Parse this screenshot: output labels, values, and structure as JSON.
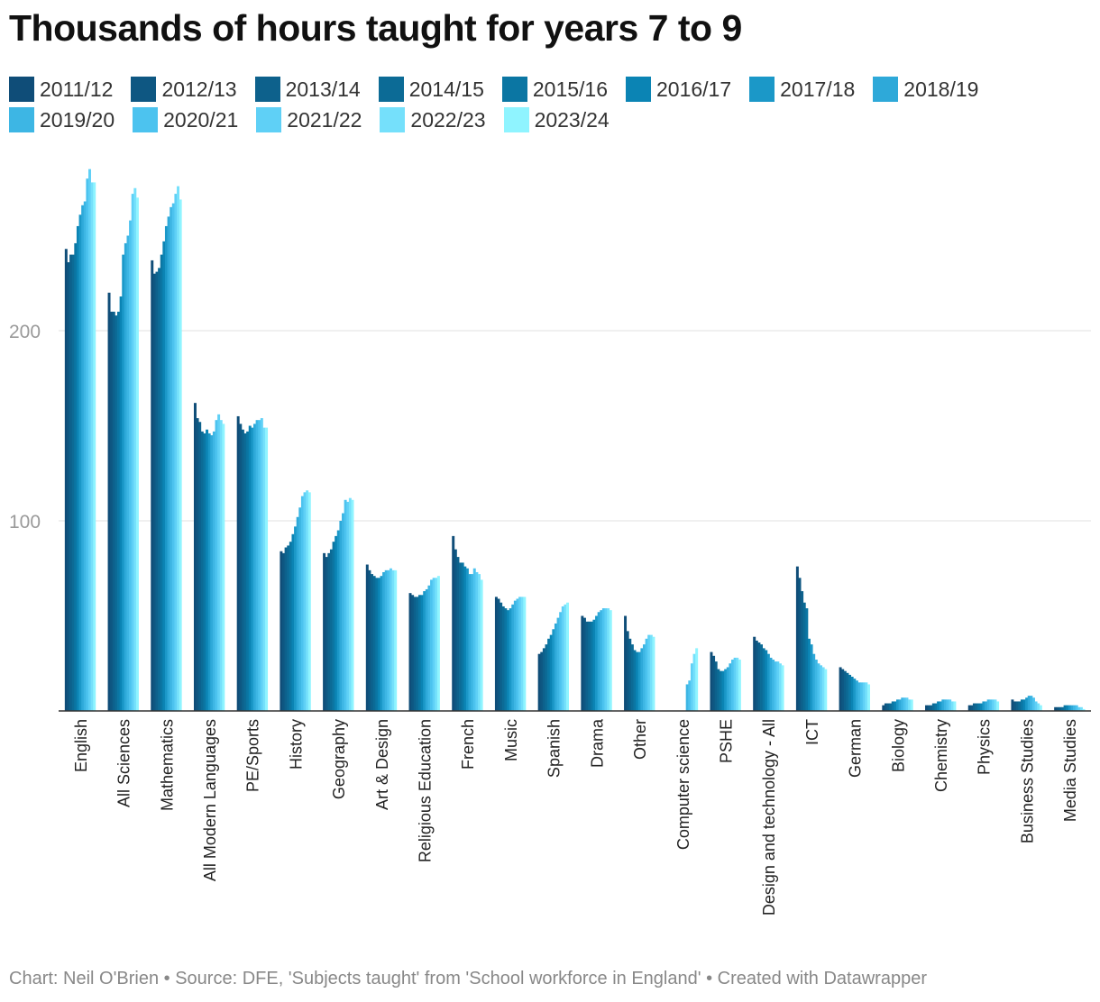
{
  "title": "Thousands of hours taught for years 7 to 9",
  "footer": "Chart: Neil O'Brien • Source: DFE, 'Subjects taught' from 'School workforce in England' • Created with Datawrapper",
  "chart_data": {
    "type": "bar",
    "title": "Thousands of hours taught for years 7 to 9",
    "xlabel": "",
    "ylabel": "",
    "ylim": [
      0,
      280
    ],
    "yticks": [
      100,
      200
    ],
    "grid": true,
    "legend_position": "top",
    "series": [
      {
        "name": "2011/12",
        "color": "#0f4d78",
        "values": [
          243,
          220,
          237,
          162,
          155,
          84,
          83,
          77,
          62,
          92,
          60,
          30,
          50,
          50,
          null,
          31,
          39,
          76,
          23,
          3,
          3,
          3,
          6,
          2
        ]
      },
      {
        "name": "2012/13",
        "color": "#0e5782",
        "values": [
          236,
          210,
          230,
          154,
          151,
          83,
          81,
          74,
          61,
          85,
          59,
          31,
          49,
          42,
          null,
          29,
          37,
          70,
          22,
          4,
          3,
          3,
          5,
          2
        ]
      },
      {
        "name": "2013/14",
        "color": "#0d618c",
        "values": [
          240,
          210,
          231,
          152,
          148,
          86,
          83,
          72,
          60,
          81,
          57,
          33,
          47,
          38,
          null,
          26,
          36,
          63,
          21,
          4,
          3,
          4,
          5,
          2
        ]
      },
      {
        "name": "2014/15",
        "color": "#0c6b96",
        "values": [
          240,
          208,
          233,
          147,
          146,
          87,
          85,
          71,
          60,
          78,
          55,
          35,
          47,
          35,
          null,
          22,
          35,
          57,
          20,
          4,
          4,
          4,
          5,
          2
        ]
      },
      {
        "name": "2015/16",
        "color": "#0b76a3",
        "values": [
          246,
          210,
          240,
          146,
          147,
          89,
          89,
          70,
          61,
          78,
          54,
          38,
          47,
          32,
          null,
          21,
          33,
          54,
          19,
          5,
          4,
          4,
          6,
          3
        ]
      },
      {
        "name": "2016/17",
        "color": "#0b84b4",
        "values": [
          255,
          218,
          247,
          148,
          150,
          93,
          92,
          70,
          61,
          76,
          53,
          40,
          48,
          31,
          null,
          21,
          32,
          38,
          18,
          5,
          5,
          4,
          6,
          3
        ]
      },
      {
        "name": "2017/18",
        "color": "#1b98c8",
        "values": [
          261,
          240,
          255,
          146,
          149,
          97,
          95,
          71,
          63,
          75,
          54,
          43,
          50,
          31,
          null,
          22,
          30,
          35,
          17,
          6,
          5,
          5,
          7,
          3
        ]
      },
      {
        "name": "2018/19",
        "color": "#2ea9d9",
        "values": [
          266,
          246,
          260,
          145,
          151,
          102,
          100,
          73,
          64,
          72,
          56,
          46,
          52,
          33,
          null,
          23,
          28,
          30,
          16,
          6,
          6,
          5,
          8,
          3
        ]
      },
      {
        "name": "2019/20",
        "color": "#3db6e4",
        "values": [
          268,
          250,
          265,
          147,
          153,
          107,
          104,
          74,
          66,
          72,
          58,
          49,
          53,
          35,
          14,
          25,
          27,
          27,
          15,
          7,
          6,
          6,
          8,
          3
        ]
      },
      {
        "name": "2020/21",
        "color": "#4cc3ef",
        "values": [
          280,
          258,
          267,
          153,
          153,
          113,
          111,
          74,
          69,
          75,
          59,
          52,
          54,
          38,
          16,
          27,
          26,
          25,
          15,
          7,
          6,
          6,
          7,
          3
        ]
      },
      {
        "name": "2021/22",
        "color": "#5fd0f6",
        "values": [
          285,
          272,
          272,
          156,
          154,
          115,
          110,
          75,
          70,
          73,
          60,
          55,
          54,
          40,
          25,
          28,
          26,
          24,
          15,
          7,
          6,
          6,
          5,
          2
        ]
      },
      {
        "name": "2022/23",
        "color": "#75e0fb",
        "values": [
          278,
          275,
          276,
          153,
          149,
          116,
          112,
          74,
          70,
          72,
          60,
          56,
          54,
          40,
          30,
          28,
          25,
          23,
          15,
          6,
          5,
          6,
          4,
          2
        ]
      },
      {
        "name": "2023/24",
        "color": "#8ff4ff",
        "values": [
          278,
          270,
          269,
          151,
          149,
          115,
          111,
          74,
          71,
          69,
          60,
          57,
          53,
          39,
          33,
          27,
          24,
          22,
          14,
          6,
          5,
          5,
          3,
          1
        ]
      }
    ],
    "categories": [
      "English",
      "All Sciences",
      "Mathematics",
      "All Modern Languages",
      "PE/Sports",
      "History",
      "Geography",
      "Art & Design",
      "Religious Education",
      "French",
      "Music",
      "Spanish",
      "Drama",
      "Other",
      "Computer science",
      "PSHE",
      "Design and technology - All",
      "ICT",
      "German",
      "Biology",
      "Chemistry",
      "Physics",
      "Business Studies",
      "Media Studies"
    ]
  }
}
